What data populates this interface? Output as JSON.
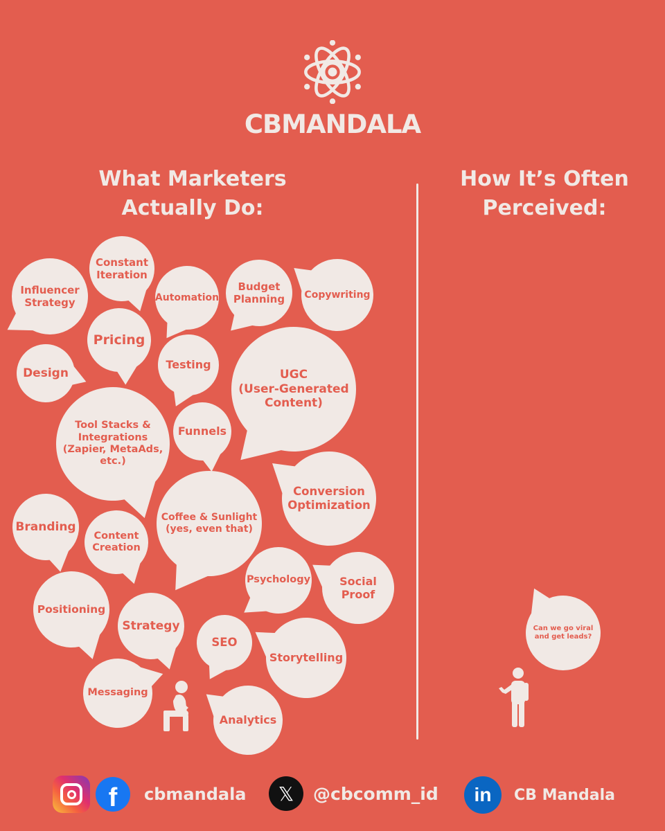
{
  "brand": {
    "name": "CBMANDALA",
    "logo_icon": "mandala-logo-icon"
  },
  "left_heading": "What Marketers\nActually Do:",
  "right_heading": "How It’s Often\nPerceived:",
  "colors": {
    "background": "#e35d4f",
    "bubble": "#f1e9e5",
    "text_light": "#f1e9e5",
    "text_accent": "#e35d4f"
  },
  "bubbles": [
    {
      "label": "Influencer\nStrategy"
    },
    {
      "label": "Constant\nIteration"
    },
    {
      "label": "Automation"
    },
    {
      "label": "Budget\nPlanning"
    },
    {
      "label": "Copywriting"
    },
    {
      "label": "Pricing"
    },
    {
      "label": "Design"
    },
    {
      "label": "Testing"
    },
    {
      "label": "UGC\n(User-Generated\nContent)"
    },
    {
      "label": "Tool Stacks &\nIntegrations\n(Zapier, MetaAds,\netc.)"
    },
    {
      "label": "Funnels"
    },
    {
      "label": "Conversion\nOptimization"
    },
    {
      "label": "Branding"
    },
    {
      "label": "Content\nCreation"
    },
    {
      "label": "Coffee & Sunlight\n(yes, even that)"
    },
    {
      "label": "Psychology"
    },
    {
      "label": "Social\nProof"
    },
    {
      "label": "Positioning"
    },
    {
      "label": "Strategy"
    },
    {
      "label": "SEO"
    },
    {
      "label": "Storytelling"
    },
    {
      "label": "Messaging"
    },
    {
      "label": "Analytics"
    }
  ],
  "perceived_bubble": {
    "label": "Can we go viral\nand get leads?"
  },
  "footer": {
    "instagram": {
      "icon": "instagram-icon"
    },
    "facebook": {
      "icon": "facebook-icon",
      "handle": "cbmandala"
    },
    "x": {
      "icon": "x-icon",
      "handle": "@cbcomm_id"
    },
    "linkedin": {
      "icon": "linkedin-icon",
      "name": "CB Mandala"
    }
  }
}
